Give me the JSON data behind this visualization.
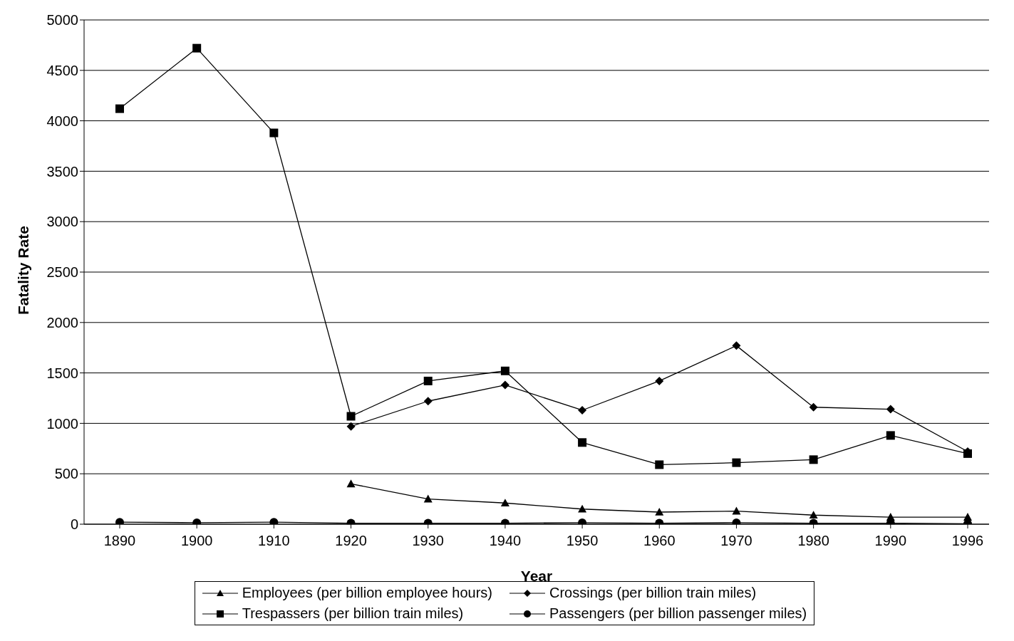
{
  "chart_data": {
    "type": "line",
    "xlabel": "Year",
    "ylabel": "Fatality Rate",
    "categories": [
      "1890",
      "1900",
      "1910",
      "1920",
      "1930",
      "1940",
      "1950",
      "1960",
      "1970",
      "1980",
      "1990",
      "1996"
    ],
    "ylim": [
      0,
      5000
    ],
    "yticks": [
      0,
      500,
      1000,
      1500,
      2000,
      2500,
      3000,
      3500,
      4000,
      4500,
      5000
    ],
    "grid": "y",
    "legend": "bottom",
    "line_style": "solid",
    "series": [
      {
        "name": "Employees (per billion employee hours)",
        "color": "#000000",
        "marker": "triangle",
        "values": [
          null,
          null,
          null,
          400,
          250,
          210,
          150,
          120,
          130,
          90,
          70,
          70
        ]
      },
      {
        "name": "Crossings (per billion train miles)",
        "color": "#000000",
        "marker": "diamond",
        "values": [
          null,
          null,
          null,
          970,
          1220,
          1380,
          1130,
          1420,
          1770,
          1160,
          1140,
          720
        ]
      },
      {
        "name": "Trespassers (per billion train miles)",
        "color": "#000000",
        "marker": "square",
        "values": [
          4120,
          4720,
          3880,
          1070,
          1420,
          1520,
          810,
          590,
          610,
          640,
          880,
          700
        ]
      },
      {
        "name": "Passengers (per billion passenger miles)",
        "color": "#000000",
        "marker": "circle",
        "values": [
          20,
          15,
          20,
          10,
          10,
          10,
          15,
          10,
          15,
          10,
          10,
          5
        ]
      }
    ]
  }
}
